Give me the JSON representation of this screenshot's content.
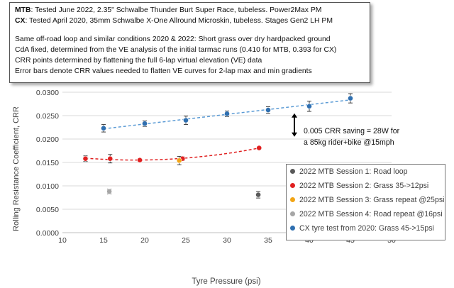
{
  "notes": {
    "line1_label": "MTB",
    "line1_text": ": Tested June 2022, 2.35\" Schwalbe Thunder Burt Super Race, tubeless. Power2Max PM",
    "line2_label": "CX",
    "line2_text": ": Tested April 2020, 35mm Schwalbe X-One Allround Microskin, tubeless. Stages Gen2 LH PM",
    "line3": "Same off-road loop and similar conditions 2020 & 2022: Short grass over dry hardpacked ground",
    "line4": "CdA fixed, determined from the VE analysis of the initial tarmac runs (0.410 for MTB, 0.393 for CX)",
    "line5": "CRR points determined by flattening the full 6-lap virtual elevation (VE) data",
    "line6": "Error bars denote CRR values needed to flatten VE curves for 2-lap max and min gradients"
  },
  "annotation": {
    "line1": "0.005 CRR saving = 28W for",
    "line2": "a 85kg rider+bike @15mph"
  },
  "chart_data": {
    "type": "scatter",
    "title": "",
    "xlabel": "Tyre Pressure (psi)",
    "ylabel": "Rolling Resistance Coefficient, CRR",
    "xlim": [
      10,
      50
    ],
    "ylim": [
      0,
      0.03
    ],
    "x_ticks": [
      10,
      15,
      20,
      25,
      30,
      35,
      40,
      45,
      50
    ],
    "y_ticks": [
      0.0,
      0.005,
      0.01,
      0.015,
      0.02,
      0.025,
      0.03
    ],
    "x_tick_labels": [
      "10",
      "15",
      "20",
      "25",
      "30",
      "35",
      "40",
      "45",
      "50"
    ],
    "y_tick_labels": [
      "0.0000",
      "0.0050",
      "0.0100",
      "0.0150",
      "0.0200",
      "0.0250",
      "0.0300"
    ],
    "grid": "horizontal",
    "legend_position": "right",
    "series": [
      {
        "name": "2022 MTB Session 1: Road loop",
        "color": "#595959",
        "points": [
          {
            "x": 33.8,
            "y": 0.0081,
            "err": 0.0007
          }
        ]
      },
      {
        "name": "2022 MTB Session 2: Grass 35->12psi",
        "color": "#e02020",
        "trendline": "polynomial",
        "points": [
          {
            "x": 12.8,
            "y": 0.0158,
            "err": 0.0006
          },
          {
            "x": 15.8,
            "y": 0.0158,
            "err": 0.0009
          },
          {
            "x": 19.4,
            "y": 0.0155,
            "err": 0.0003
          },
          {
            "x": 24.6,
            "y": 0.0158,
            "err": 0.0004
          },
          {
            "x": 33.9,
            "y": 0.0181,
            "err": 0.0003
          }
        ]
      },
      {
        "name": "2022 MTB Session 3: Grass repeat @25psi",
        "color": "#f2a516",
        "points": [
          {
            "x": 24.2,
            "y": 0.0154,
            "err": 0.0009
          }
        ]
      },
      {
        "name": "2022 MTB Session 4: Road repeat @16psi",
        "color": "#a6a6a6",
        "points": [
          {
            "x": 15.7,
            "y": 0.0088,
            "err": 0.0005
          }
        ]
      },
      {
        "name": "CX tyre test from 2020: Grass 45->15psi",
        "color": "#2f6fb0",
        "trendline": "linear",
        "points": [
          {
            "x": 15.0,
            "y": 0.0223,
            "err": 0.0008
          },
          {
            "x": 20.0,
            "y": 0.0233,
            "err": 0.0006
          },
          {
            "x": 25.0,
            "y": 0.024,
            "err": 0.0009
          },
          {
            "x": 30.0,
            "y": 0.0254,
            "err": 0.0006
          },
          {
            "x": 35.0,
            "y": 0.0262,
            "err": 0.0007
          },
          {
            "x": 40.0,
            "y": 0.027,
            "err": 0.0011
          },
          {
            "x": 45.0,
            "y": 0.0287,
            "err": 0.001
          }
        ]
      }
    ],
    "annotation_arrow": {
      "x": 0.0,
      "y_from": 0.0205,
      "y_to": 0.0255,
      "meaning": "0.005 CRR span"
    }
  }
}
